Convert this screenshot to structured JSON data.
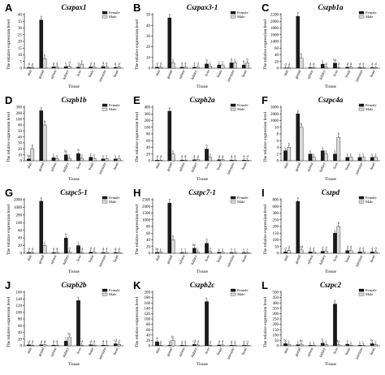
{
  "figure": {
    "tissues_axis_label": "Tissue",
    "y_axis_label": "The relative expression level"
  },
  "legend": {
    "female": "Female",
    "male": "Male"
  },
  "colors": {
    "female": "#1a1a1a",
    "male": "#d9d9d9",
    "axis": "#000000"
  },
  "chart_data": [
    {
      "panel": "A",
      "title": "Cszpax1",
      "type": "bar",
      "categories": [
        "skin",
        "gonad",
        "spleen",
        "kidney",
        "liver",
        "brain",
        "intestine",
        "heart"
      ],
      "yticks": [
        0,
        5,
        10,
        15,
        20,
        25,
        30,
        35,
        40
      ],
      "ylim": [
        0,
        40
      ],
      "series": [
        {
          "name": "Female",
          "values": [
            0.5,
            36,
            1,
            1.2,
            0.8,
            1,
            1.2,
            0.6
          ]
        },
        {
          "name": "Male",
          "values": [
            0.4,
            7,
            1,
            1.4,
            3,
            0.8,
            0.9,
            0.7
          ]
        }
      ],
      "labels": [
        [
          "d",
          "d"
        ],
        [
          "a",
          "b"
        ],
        [
          "d",
          "d"
        ],
        [
          "c",
          "d"
        ],
        [
          "d",
          "c"
        ],
        [
          "d",
          "d"
        ],
        [
          "d",
          "d"
        ],
        [
          "d",
          "d"
        ]
      ]
    },
    {
      "panel": "B",
      "title": "Cszpax3-1",
      "type": "bar",
      "categories": [
        "skin",
        "gonad",
        "spleen",
        "kidney",
        "liver",
        "brain",
        "intestine",
        "heart"
      ],
      "yticks": [
        0,
        10,
        20,
        30,
        40,
        50
      ],
      "ylim": [
        0,
        50
      ],
      "series": [
        {
          "name": "Female",
          "values": [
            1,
            47,
            1,
            1,
            4,
            3,
            5,
            3
          ]
        },
        {
          "name": "Male",
          "values": [
            1,
            5,
            1,
            1,
            2,
            3,
            5,
            5
          ]
        }
      ],
      "labels": [
        [
          "d",
          "d"
        ],
        [
          "a",
          "c"
        ],
        [
          "d",
          "d"
        ],
        [
          "d",
          "d"
        ],
        [
          "b",
          "c"
        ],
        [
          "c",
          "c"
        ],
        [
          "b",
          "c"
        ],
        [
          "b",
          "b"
        ]
      ]
    },
    {
      "panel": "C",
      "title": "Cszpb1a",
      "type": "bar",
      "categories": [
        "skin",
        "gonad",
        "spleen",
        "kidney",
        "liver",
        "brain",
        "intestine",
        "heart"
      ],
      "yticks": [
        0,
        20,
        40,
        60,
        1400,
        1600,
        1800,
        2000,
        2200
      ],
      "ylim": [
        0,
        2200
      ],
      "series": [
        {
          "name": "Female",
          "values": [
            1,
            2150,
            2,
            12,
            15,
            3,
            2,
            2
          ]
        },
        {
          "name": "Male",
          "values": [
            1,
            30,
            2,
            3,
            2,
            3,
            2,
            2
          ]
        }
      ],
      "labels": [
        [
          "d",
          "d"
        ],
        [
          "a",
          "b"
        ],
        [
          "d",
          "d"
        ],
        [
          "c",
          "d"
        ],
        [
          "bc",
          "d"
        ],
        [
          "d",
          "d"
        ],
        [
          "d",
          "d"
        ],
        [
          "d",
          "d"
        ]
      ]
    },
    {
      "panel": "D",
      "title": "Cszpb1b",
      "type": "bar",
      "categories": [
        "skin",
        "gonad",
        "spleen",
        "kidney",
        "liver",
        "brain",
        "intestine",
        "heart"
      ],
      "yticks": [
        0,
        10,
        20,
        30,
        40,
        50,
        60,
        100,
        200,
        300
      ],
      "ylim": [
        0,
        300
      ],
      "series": [
        {
          "name": "Female",
          "values": [
            3,
            240,
            5,
            10,
            12,
            6,
            3,
            3
          ]
        },
        {
          "name": "Male",
          "values": [
            20,
            60,
            3,
            4,
            4,
            4,
            3,
            3
          ]
        }
      ],
      "labels": [
        [
          "bc",
          "b"
        ],
        [
          "a",
          "b"
        ],
        [
          "c",
          "c"
        ],
        [
          "bc",
          "c"
        ],
        [
          "b",
          "c"
        ],
        [
          "c",
          "c"
        ],
        [
          "c",
          "c"
        ],
        [
          "c",
          "c"
        ]
      ]
    },
    {
      "panel": "E",
      "title": "Cszpb2a",
      "type": "bar",
      "categories": [
        "skin",
        "gonad",
        "spleen",
        "kidney",
        "liver",
        "brain",
        "intestine",
        "heart"
      ],
      "yticks": [
        0,
        20,
        40,
        60,
        80,
        100,
        200,
        300,
        400
      ],
      "ylim": [
        0,
        400
      ],
      "series": [
        {
          "name": "Female",
          "values": [
            2,
            340,
            2,
            3,
            35,
            3,
            2,
            2
          ]
        },
        {
          "name": "Male",
          "values": [
            2,
            20,
            2,
            3,
            10,
            3,
            2,
            2
          ]
        }
      ],
      "labels": [
        [
          "d",
          "d"
        ],
        [
          "a",
          "c"
        ],
        [
          "d",
          "d"
        ],
        [
          "d",
          "d"
        ],
        [
          "b",
          "c"
        ],
        [
          "d",
          "d"
        ],
        [
          "d",
          "d"
        ],
        [
          "d",
          "d"
        ]
      ]
    },
    {
      "panel": "F",
      "title": "Cszpc4a",
      "type": "bar",
      "categories": [
        "skin",
        "gonad",
        "spleen",
        "kidney",
        "liver",
        "brain",
        "intestine",
        "heart"
      ],
      "yticks": [
        0,
        2,
        4,
        6,
        8,
        10,
        1000,
        2000,
        3000
      ],
      "ylim": [
        0,
        3000
      ],
      "series": [
        {
          "name": "Female",
          "values": [
            3,
            2000,
            2,
            3,
            2,
            1,
            1,
            1
          ]
        },
        {
          "name": "Male",
          "values": [
            4,
            10,
            1,
            2,
            7,
            1,
            1,
            1
          ]
        }
      ],
      "labels": [
        [
          "c",
          "b"
        ],
        [
          "a",
          "b"
        ],
        [
          "c",
          "c"
        ],
        [
          "c",
          "c"
        ],
        [
          "c",
          "b"
        ],
        [
          "c",
          "c"
        ],
        [
          "c",
          "c"
        ],
        [
          "c",
          "c"
        ]
      ]
    },
    {
      "panel": "G",
      "title": "Cszpc5-1",
      "type": "bar",
      "categories": [
        "skin",
        "gonad",
        "spleen",
        "kidney",
        "liver",
        "brain",
        "intestine",
        "heart"
      ],
      "yticks": [
        0,
        20,
        40,
        60,
        100,
        200,
        1000,
        2000
      ],
      "ylim": [
        0,
        2000
      ],
      "series": [
        {
          "name": "Female",
          "values": [
            2,
            1800,
            2,
            40,
            20,
            3,
            2,
            2
          ]
        },
        {
          "name": "Male",
          "values": [
            2,
            20,
            2,
            3,
            2,
            3,
            2,
            2
          ]
        }
      ],
      "labels": [
        [
          "d",
          "d"
        ],
        [
          "a",
          "c"
        ],
        [
          "d",
          "d"
        ],
        [
          "b",
          "d"
        ],
        [
          "c",
          "d"
        ],
        [
          "d",
          "d"
        ],
        [
          "d",
          "d"
        ],
        [
          "d",
          "d"
        ]
      ]
    },
    {
      "panel": "H",
      "title": "Cszpc7-1",
      "type": "bar",
      "categories": [
        "skin",
        "gonad",
        "spleen",
        "kidney",
        "liver",
        "brain",
        "intestine",
        "heart"
      ],
      "yticks": [
        0,
        20,
        40,
        60,
        80,
        1000,
        1500,
        2000,
        2500
      ],
      "ylim": [
        0,
        2500
      ],
      "series": [
        {
          "name": "Female",
          "values": [
            3,
            2250,
            2,
            15,
            30,
            3,
            2,
            2
          ]
        },
        {
          "name": "Male",
          "values": [
            3,
            40,
            2,
            3,
            5,
            3,
            2,
            2
          ]
        }
      ],
      "labels": [
        [
          "bc",
          "c"
        ],
        [
          "a",
          "b"
        ],
        [
          "c",
          "c"
        ],
        [
          "bc",
          "c"
        ],
        [
          "b",
          "c"
        ],
        [
          "c",
          "c"
        ],
        [
          "c",
          "c"
        ],
        [
          "c",
          "c"
        ]
      ]
    },
    {
      "panel": "I",
      "title": "Cszpd",
      "type": "bar",
      "categories": [
        "skin",
        "gonad",
        "spleen",
        "kidney",
        "liver",
        "brain",
        "intestine",
        "heart"
      ],
      "yticks": [
        0,
        50,
        100,
        150,
        200,
        250,
        300,
        600,
        800
      ],
      "ylim": [
        0,
        800
      ],
      "series": [
        {
          "name": "Female",
          "values": [
            10,
            750,
            10,
            15,
            150,
            20,
            10,
            10
          ]
        },
        {
          "name": "Male",
          "values": [
            20,
            25,
            10,
            15,
            200,
            20,
            10,
            10
          ]
        }
      ],
      "labels": [
        [
          "d",
          "d"
        ],
        [
          "a",
          "cd"
        ],
        [
          "d",
          "d"
        ],
        [
          "d",
          "d"
        ],
        [
          "c",
          "b"
        ],
        [
          "d",
          "d"
        ],
        [
          "d",
          "d"
        ],
        [
          "d",
          "d"
        ]
      ]
    },
    {
      "panel": "J",
      "title": "Cszpb2b",
      "type": "bar",
      "categories": [
        "skin",
        "gonad",
        "spleen",
        "kidney",
        "liver",
        "brain",
        "intestine",
        "heart"
      ],
      "yticks": [
        0,
        20,
        40,
        60,
        80,
        100,
        120,
        140,
        160
      ],
      "ylim": [
        0,
        160
      ],
      "series": [
        {
          "name": "Female",
          "values": [
            3,
            3,
            2,
            14,
            135,
            3,
            2,
            6
          ]
        },
        {
          "name": "Male",
          "values": [
            2,
            3,
            2,
            25,
            2,
            2,
            2,
            4
          ]
        }
      ],
      "labels": [
        [
          "d",
          "d"
        ],
        [
          "d",
          "d"
        ],
        [
          "d",
          "d"
        ],
        [
          "c",
          "bc"
        ],
        [
          "a",
          "d"
        ],
        [
          "d",
          "d"
        ],
        [
          "d",
          "d"
        ],
        [
          "cd",
          "d"
        ]
      ]
    },
    {
      "panel": "K",
      "title": "Cszpb2c",
      "type": "bar",
      "categories": [
        "skin",
        "gonad",
        "spleen",
        "kidney",
        "liver",
        "brain",
        "intestine",
        "heart"
      ],
      "yticks": [
        0,
        20,
        40,
        60,
        80,
        100,
        120,
        140,
        160,
        180,
        200
      ],
      "ylim": [
        0,
        200
      ],
      "series": [
        {
          "name": "Female",
          "values": [
            15,
            2,
            2,
            5,
            165,
            3,
            2,
            2
          ]
        },
        {
          "name": "Male",
          "values": [
            2,
            20,
            2,
            3,
            2,
            3,
            2,
            2
          ]
        }
      ],
      "labels": [
        [
          "b",
          "d"
        ],
        [
          "d",
          "bc"
        ],
        [
          "d",
          "d"
        ],
        [
          "cd",
          "d"
        ],
        [
          "a",
          "d"
        ],
        [
          "d",
          "d"
        ],
        [
          "d",
          "d"
        ],
        [
          "d",
          "d"
        ]
      ]
    },
    {
      "panel": "L",
      "title": "Cszpc2",
      "type": "bar",
      "categories": [
        "skin",
        "gonad",
        "spleen",
        "kidney",
        "liver",
        "brain",
        "intestine",
        "heart"
      ],
      "yticks": [
        0,
        50,
        100,
        150,
        200,
        250,
        300,
        350,
        400,
        450,
        500
      ],
      "ylim": [
        0,
        500
      ],
      "series": [
        {
          "name": "Female",
          "values": [
            20,
            10,
            5,
            25,
            390,
            15,
            5,
            20
          ]
        },
        {
          "name": "Male",
          "values": [
            10,
            15,
            5,
            10,
            10,
            5,
            5,
            10
          ]
        }
      ],
      "labels": [
        [
          "bc",
          "c"
        ],
        [
          "c",
          "bc"
        ],
        [
          "c",
          "c"
        ],
        [
          "b",
          "c"
        ],
        [
          "a",
          "bc"
        ],
        [
          "c",
          "c"
        ],
        [
          "c",
          "c"
        ],
        [
          "bc",
          "c"
        ]
      ]
    }
  ]
}
